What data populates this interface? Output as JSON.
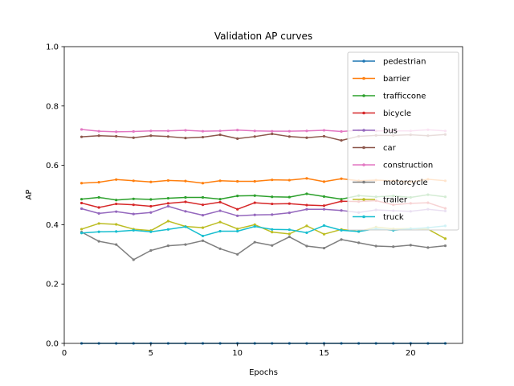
{
  "chart_data": {
    "type": "line",
    "title": "Validation AP curves",
    "xlabel": "Epochs",
    "ylabel": "AP",
    "xlim": [
      0,
      23
    ],
    "ylim": [
      0.0,
      1.0
    ],
    "xticks": [
      "0",
      "5",
      "10",
      "15",
      "20"
    ],
    "xtick_values": [
      0,
      5,
      10,
      15,
      20
    ],
    "yticks": [
      "0.0",
      "0.2",
      "0.4",
      "0.6",
      "0.8",
      "1.0"
    ],
    "ytick_values": [
      0.0,
      0.2,
      0.4,
      0.6,
      0.8,
      1.0
    ],
    "grid": false,
    "legend_position": "top-right",
    "x": [
      1,
      2,
      3,
      4,
      5,
      6,
      7,
      8,
      9,
      10,
      11,
      12,
      13,
      14,
      15,
      16,
      17,
      18,
      19,
      20,
      21,
      22
    ],
    "series": [
      {
        "name": "pedestrian",
        "color": "#1f77b4",
        "values": [
          0.0,
          0.0,
          0.0,
          0.0,
          0.0,
          0.0,
          0.0,
          0.0,
          0.0,
          0.0,
          0.0,
          0.0,
          0.0,
          0.0,
          0.0,
          0.0,
          0.0,
          0.0,
          0.0,
          0.0,
          0.0,
          0.0
        ]
      },
      {
        "name": "barrier",
        "color": "#ff7f0e",
        "values": [
          0.54,
          0.543,
          0.552,
          0.548,
          0.544,
          0.549,
          0.547,
          0.54,
          0.548,
          0.546,
          0.546,
          0.551,
          0.55,
          0.556,
          0.545,
          0.555,
          0.548,
          0.55,
          0.548,
          0.544,
          0.553,
          0.548
        ]
      },
      {
        "name": "trafficcone",
        "color": "#2ca02c",
        "values": [
          0.486,
          0.492,
          0.483,
          0.487,
          0.485,
          0.489,
          0.492,
          0.492,
          0.486,
          0.497,
          0.498,
          0.494,
          0.493,
          0.504,
          0.495,
          0.486,
          0.498,
          0.494,
          0.497,
          0.492,
          0.501,
          0.494
        ]
      },
      {
        "name": "bicycle",
        "color": "#d62728",
        "values": [
          0.473,
          0.458,
          0.47,
          0.467,
          0.462,
          0.472,
          0.477,
          0.467,
          0.476,
          0.452,
          0.474,
          0.47,
          0.471,
          0.466,
          0.464,
          0.479,
          0.478,
          0.481,
          0.467,
          0.472,
          0.474,
          0.455
        ]
      },
      {
        "name": "bus",
        "color": "#9467bd",
        "values": [
          0.454,
          0.438,
          0.444,
          0.436,
          0.441,
          0.462,
          0.445,
          0.432,
          0.447,
          0.43,
          0.433,
          0.434,
          0.44,
          0.452,
          0.452,
          0.448,
          0.441,
          0.45,
          0.447,
          0.445,
          0.452,
          0.446
        ]
      },
      {
        "name": "car",
        "color": "#8c564b",
        "values": [
          0.696,
          0.7,
          0.698,
          0.693,
          0.7,
          0.697,
          0.692,
          0.695,
          0.703,
          0.69,
          0.697,
          0.706,
          0.697,
          0.693,
          0.698,
          0.684,
          0.698,
          0.701,
          0.701,
          0.703,
          0.7,
          0.704
        ]
      },
      {
        "name": "construction",
        "color": "#e377c2",
        "values": [
          0.721,
          0.715,
          0.713,
          0.714,
          0.716,
          0.716,
          0.718,
          0.715,
          0.716,
          0.719,
          0.716,
          0.715,
          0.715,
          0.716,
          0.718,
          0.714,
          0.718,
          0.716,
          0.716,
          0.716,
          0.72,
          0.716
        ]
      },
      {
        "name": "motorcycle",
        "color": "#7f7f7f",
        "values": [
          0.375,
          0.344,
          0.333,
          0.282,
          0.313,
          0.329,
          0.333,
          0.346,
          0.319,
          0.3,
          0.341,
          0.33,
          0.359,
          0.328,
          0.321,
          0.35,
          0.339,
          0.328,
          0.326,
          0.331,
          0.323,
          0.329
        ]
      },
      {
        "name": "trailer",
        "color": "#bcbd22",
        "values": [
          0.385,
          0.404,
          0.401,
          0.385,
          0.38,
          0.412,
          0.394,
          0.39,
          0.409,
          0.386,
          0.4,
          0.375,
          0.369,
          0.396,
          0.368,
          0.384,
          0.377,
          0.392,
          0.386,
          0.387,
          0.385,
          0.353
        ]
      },
      {
        "name": "truck",
        "color": "#17becf",
        "values": [
          0.372,
          0.376,
          0.377,
          0.381,
          0.376,
          0.384,
          0.393,
          0.362,
          0.378,
          0.378,
          0.394,
          0.384,
          0.383,
          0.373,
          0.397,
          0.381,
          0.377,
          0.386,
          0.381,
          0.386,
          0.39,
          0.396
        ]
      }
    ]
  }
}
